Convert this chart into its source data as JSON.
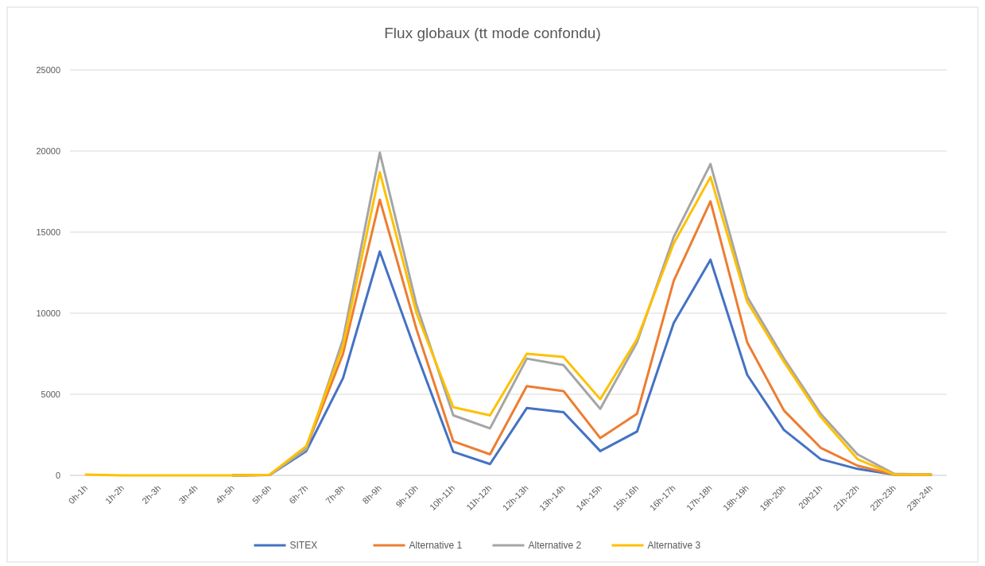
{
  "chart_data": {
    "type": "line",
    "title": "Flux globaux (tt mode confondu)",
    "categories": [
      "0h-1h",
      "1h-2h",
      "2h-3h",
      "3h-4h",
      "4h-5h",
      "5h-6h",
      "6h-7h",
      "7h-8h",
      "8h-9h",
      "9h-10h",
      "10h-11h",
      "11h-12h",
      "12h-13h",
      "13h-14h",
      "14h-15h",
      "15h-16h",
      "16h-17h",
      "17h-18h",
      "18h-19h",
      "19h-20h",
      "20h21h",
      "21h-22h",
      "22h-23h",
      "23h-24h"
    ],
    "series": [
      {
        "name": "SITEX",
        "color": "#4472c4",
        "values": [
          null,
          null,
          null,
          null,
          0,
          30,
          1500,
          6000,
          13800,
          7500,
          1450,
          700,
          4150,
          3900,
          1500,
          2700,
          9400,
          13300,
          6200,
          2800,
          1000,
          400,
          50,
          50
        ]
      },
      {
        "name": "Alternative 1",
        "color": "#ed7d31",
        "values": [
          null,
          null,
          null,
          null,
          0,
          30,
          1700,
          7500,
          17000,
          9000,
          2100,
          1300,
          5500,
          5200,
          2300,
          3800,
          12000,
          16900,
          8200,
          4000,
          1700,
          600,
          50,
          50
        ]
      },
      {
        "name": "Alternative 2",
        "color": "#a5a5a5",
        "values": [
          null,
          null,
          null,
          null,
          0,
          40,
          1600,
          8400,
          19900,
          10500,
          3700,
          2900,
          7200,
          6800,
          4100,
          8200,
          14700,
          19200,
          11000,
          7200,
          3800,
          1300,
          100,
          50
        ]
      },
      {
        "name": "Alternative 3",
        "color": "#ffc000",
        "values": [
          50,
          0,
          0,
          0,
          0,
          40,
          1800,
          8000,
          18700,
          10000,
          4200,
          3700,
          7500,
          7300,
          4700,
          8400,
          14300,
          18400,
          10700,
          7000,
          3600,
          1000,
          50,
          50
        ]
      }
    ],
    "ylim": [
      0,
      25000
    ],
    "yticks": [
      0,
      5000,
      10000,
      15000,
      20000,
      25000
    ],
    "grid": "y",
    "legend": "bottom",
    "marker": "none",
    "line_style": "solid"
  }
}
